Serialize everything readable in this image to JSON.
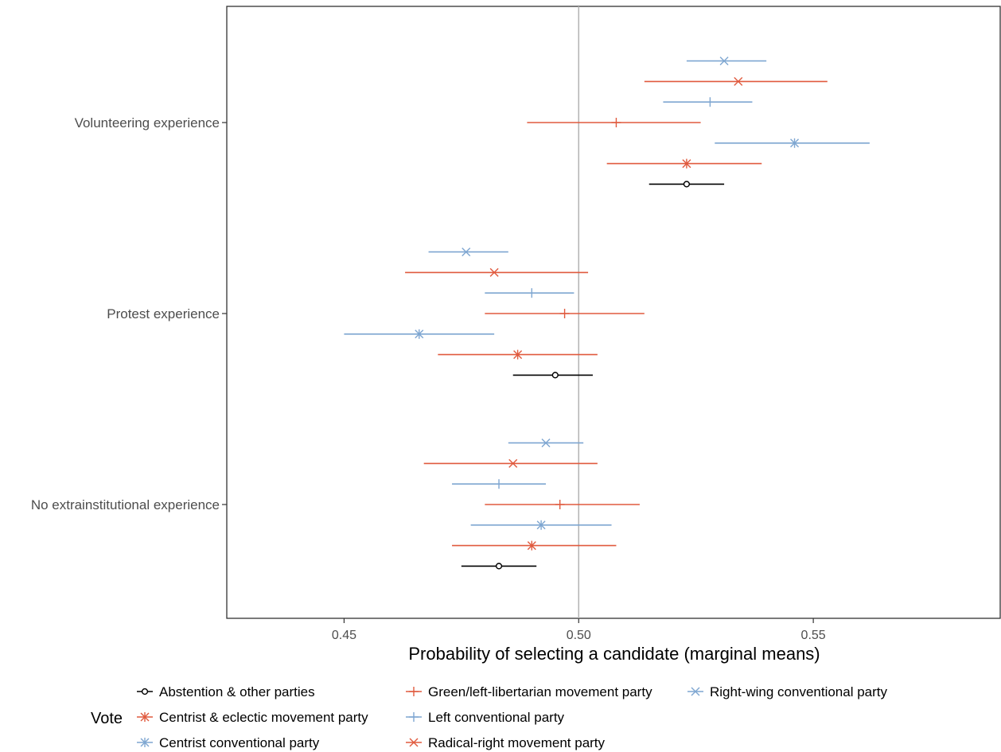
{
  "colors": {
    "black": "#000000",
    "red": "#e05a3e",
    "blue": "#7ea6d1",
    "ref_line": "#b3b3b3",
    "panel_border": "#333333"
  },
  "chart_data": {
    "type": "scatter",
    "subtype": "coefficient plot with horizontal confidence intervals",
    "xlabel": "Probability of selecting a candidate (marginal means)",
    "xlim": [
      0.425,
      0.59
    ],
    "xticks": [
      0.45,
      0.5,
      0.55
    ],
    "xtick_labels": [
      "0.45",
      "0.50",
      "0.55"
    ],
    "reference_line": 0.5,
    "grid": false,
    "legend_position": "bottom",
    "legend_title": "Vote",
    "categories": [
      "Volunteering experience",
      "Protest experience",
      "No extrainstitutional experience"
    ],
    "series": [
      {
        "name": "Right-wing conventional party",
        "color": "blue",
        "shape": "x",
        "estimate": [
          0.531,
          0.476,
          0.493
        ],
        "lower": [
          0.523,
          0.468,
          0.485
        ],
        "upper": [
          0.54,
          0.485,
          0.501
        ]
      },
      {
        "name": "Radical-right movement party",
        "color": "red",
        "shape": "x",
        "estimate": [
          0.534,
          0.482,
          0.486
        ],
        "lower": [
          0.514,
          0.463,
          0.467
        ],
        "upper": [
          0.553,
          0.502,
          0.504
        ]
      },
      {
        "name": "Left conventional party",
        "color": "blue",
        "shape": "plus",
        "estimate": [
          0.528,
          0.49,
          0.483
        ],
        "lower": [
          0.518,
          0.48,
          0.473
        ],
        "upper": [
          0.537,
          0.499,
          0.493
        ]
      },
      {
        "name": "Green/left-libertarian movement party",
        "color": "red",
        "shape": "plus",
        "estimate": [
          0.508,
          0.497,
          0.496
        ],
        "lower": [
          0.489,
          0.48,
          0.48
        ],
        "upper": [
          0.526,
          0.514,
          0.513
        ]
      },
      {
        "name": "Centrist conventional party",
        "color": "blue",
        "shape": "asterisk",
        "estimate": [
          0.546,
          0.466,
          0.492
        ],
        "lower": [
          0.529,
          0.45,
          0.477
        ],
        "upper": [
          0.562,
          0.482,
          0.507
        ]
      },
      {
        "name": "Centrist & eclectic movement party",
        "color": "red",
        "shape": "asterisk",
        "estimate": [
          0.523,
          0.487,
          0.49
        ],
        "lower": [
          0.506,
          0.47,
          0.473
        ],
        "upper": [
          0.539,
          0.504,
          0.508
        ]
      },
      {
        "name": "Abstention & other parties",
        "color": "black",
        "shape": "circle",
        "estimate": [
          0.523,
          0.495,
          0.483
        ],
        "lower": [
          0.515,
          0.486,
          0.475
        ],
        "upper": [
          0.531,
          0.503,
          0.491
        ]
      }
    ],
    "legend_order": [
      "Abstention & other parties",
      "Centrist & eclectic movement party",
      "Centrist conventional party",
      "Green/left-libertarian movement party",
      "Left conventional party",
      "Radical-right movement party",
      "Right-wing conventional party"
    ]
  }
}
